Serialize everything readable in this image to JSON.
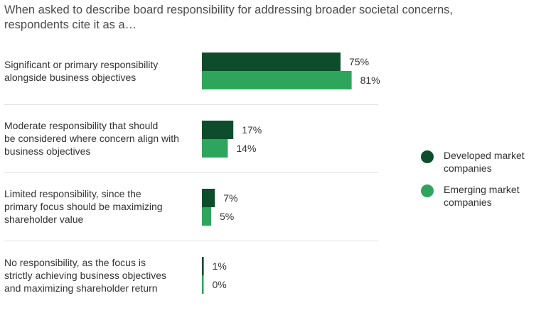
{
  "chart_data": {
    "type": "bar",
    "orientation": "horizontal",
    "title_lines": [
      "When asked to describe board responsibility for addressing broader societal concerns,",
      "respondents cite it as a…"
    ],
    "categories": [
      [
        "Significant or primary responsibility",
        "alongside business objectives"
      ],
      [
        "Moderate responsibility that should",
        "be considered where concern align with",
        "business objectives"
      ],
      [
        "Limited responsibility, since the",
        "primary focus should be maximizing",
        "shareholder value"
      ],
      [
        "No responsibility, as the focus is",
        "strictly achieving business objectives",
        "and maximizing shareholder return"
      ]
    ],
    "series": [
      {
        "name_lines": [
          "Developed market",
          "companies"
        ],
        "values": [
          75,
          17,
          7,
          1
        ],
        "color": "#0d4d2c"
      },
      {
        "name_lines": [
          "Emerging market",
          "companies"
        ],
        "values": [
          81,
          14,
          5,
          0
        ],
        "color": "#2ea55c"
      }
    ],
    "value_suffix": "%",
    "xlim": [
      0,
      100
    ],
    "grid": false,
    "legend_position": "right"
  }
}
